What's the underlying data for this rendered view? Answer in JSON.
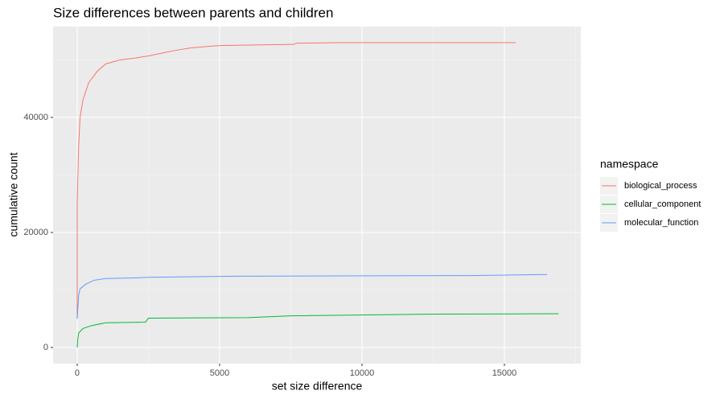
{
  "chart_data": {
    "type": "line",
    "title": "Size differences between parents and children",
    "x_label": "set size difference",
    "y_label": "cumulative count",
    "legend_title": "namespace",
    "legend_position": "right",
    "grid": true,
    "xlim": [
      -847,
      17684
    ],
    "xticks": [
      0,
      5000,
      10000,
      15000
    ],
    "ylim": [
      -2797,
      55800
    ],
    "yticks": [
      0,
      20000,
      40000
    ],
    "series": [
      {
        "name": "biological_process",
        "color": "#f8766d",
        "x": [
          0,
          0,
          50,
          100,
          200,
          400,
          700,
          1000,
          1500,
          2000,
          2500,
          3000,
          3500,
          4000,
          4500,
          5000,
          7600,
          7700,
          9200,
          15400
        ],
        "values": [
          5000,
          25000,
          35000,
          40000,
          43000,
          46000,
          48000,
          49300,
          50000,
          50300,
          50700,
          51200,
          51700,
          52100,
          52300,
          52500,
          52700,
          52900,
          53000,
          53000
        ]
      },
      {
        "name": "cellular_component",
        "color": "#00ba38",
        "x": [
          0,
          20,
          50,
          200,
          500,
          1000,
          2400,
          2500,
          6000,
          7500,
          12500,
          16900
        ],
        "values": [
          0,
          1500,
          2500,
          3300,
          3800,
          4300,
          4400,
          5100,
          5200,
          5500,
          5800,
          5870
        ]
      },
      {
        "name": "molecular_function",
        "color": "#619cff",
        "x": [
          0,
          50,
          100,
          300,
          600,
          1000,
          2000,
          2500,
          5500,
          13800,
          16500
        ],
        "values": [
          5000,
          9000,
          10200,
          11000,
          11700,
          12000,
          12100,
          12200,
          12400,
          12500,
          12700
        ]
      }
    ]
  }
}
